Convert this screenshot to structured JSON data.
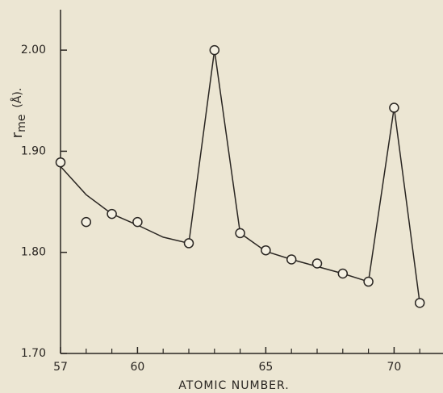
{
  "chart_data": {
    "type": "scatter",
    "xlabel": "ATOMIC NUMBER.",
    "ylabel": "r",
    "ylabel_sub": "me",
    "ylabel_unit": "(Å).",
    "xlim": [
      57,
      72
    ],
    "ylim": [
      1.7,
      2.04
    ],
    "xticks": [
      57,
      60,
      65,
      70
    ],
    "xminor_ticks": [
      58,
      59,
      61,
      62,
      63,
      64,
      66,
      67,
      68,
      69,
      71
    ],
    "yticks": [
      {
        "value": 1.7,
        "label": "1.70"
      },
      {
        "value": 1.8,
        "label": "1.80"
      },
      {
        "value": 1.9,
        "label": "1.90"
      },
      {
        "value": 2.0,
        "label": "2.00"
      }
    ],
    "color": "#2a2622",
    "series": [
      {
        "style": "markers",
        "x": [
          57,
          58,
          59,
          60,
          62,
          63,
          64,
          65,
          66,
          67,
          68,
          69,
          70,
          71
        ],
        "values": [
          1.889,
          1.83,
          1.838,
          1.83,
          1.809,
          2.0,
          1.819,
          1.802,
          1.793,
          1.789,
          1.779,
          1.771,
          1.943,
          1.75
        ]
      },
      {
        "style": "line",
        "x": [
          57,
          58,
          59,
          60,
          61,
          62,
          63,
          64,
          65,
          66,
          67,
          68,
          69,
          70,
          71
        ],
        "values": [
          1.885,
          1.857,
          1.838,
          1.827,
          1.815,
          1.809,
          2.0,
          1.819,
          1.801,
          1.793,
          1.786,
          1.779,
          1.771,
          1.943,
          1.75
        ]
      }
    ]
  }
}
